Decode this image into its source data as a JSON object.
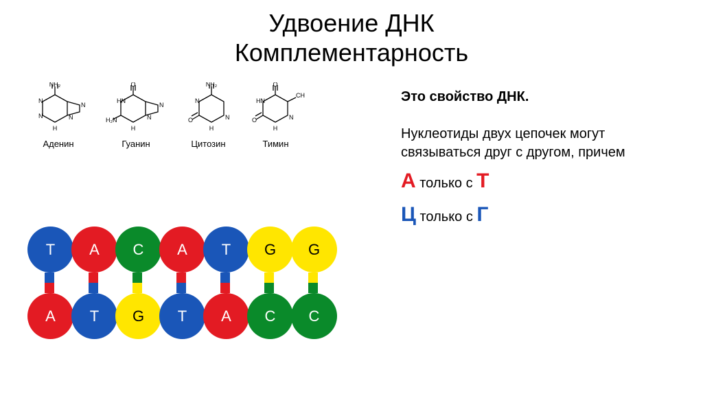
{
  "title_line1": "Удвоение ДНК",
  "title_line2": "Комплементарность",
  "chem_structures": [
    {
      "label": "Аденин"
    },
    {
      "label": "Гуанин"
    },
    {
      "label": "Цитозин"
    },
    {
      "label": "Тимин"
    }
  ],
  "right_panel": {
    "heading": "Это свойство ДНК.",
    "body": "Нуклеотиды двух цепочек могут связываться друг с другом, причем",
    "pair1_left": "А",
    "pair1_mid": " только с ",
    "pair1_right": "Т",
    "pair2_left": "Ц",
    "pair2_mid": " только с ",
    "pair2_right": "Г"
  },
  "colors": {
    "A": "#e31b23",
    "T": "#1a56b8",
    "G": "#ffe600",
    "C": "#0a8a2a",
    "A_text": "#ffffff",
    "T_text": "#ffffff",
    "G_text": "#000000",
    "C_text": "#ffffff",
    "title_color": "#000000",
    "red": "#e31b23",
    "blue": "#1a56b8"
  },
  "dna": {
    "top_strand": [
      "T",
      "A",
      "C",
      "A",
      "T",
      "G",
      "G"
    ],
    "bottom_strand": [
      "A",
      "T",
      "G",
      "T",
      "A",
      "C",
      "C"
    ],
    "bonds": [
      {
        "top_color": "#1a56b8",
        "bottom_color": "#e31b23"
      },
      {
        "top_color": "#e31b23",
        "bottom_color": "#1a56b8"
      },
      {
        "top_color": "#0a8a2a",
        "bottom_color": "#ffe600"
      },
      {
        "top_color": "#e31b23",
        "bottom_color": "#1a56b8"
      },
      {
        "top_color": "#1a56b8",
        "bottom_color": "#e31b23"
      },
      {
        "top_color": "#ffe600",
        "bottom_color": "#0a8a2a"
      },
      {
        "top_color": "#ffe600",
        "bottom_color": "#0a8a2a"
      }
    ]
  }
}
